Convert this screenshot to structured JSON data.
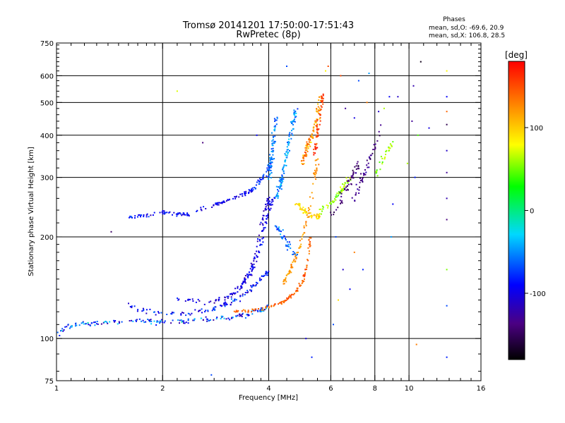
{
  "chart_data": {
    "type": "scatter",
    "title": "Tromsø 20141201 17:50:00-17:51:43",
    "subtitle": "RwPretec (8p)",
    "xlabel": "Frequency [MHz]",
    "ylabel": "Stationary phase Virtual Height [km]",
    "x_scale": "log",
    "y_scale": "log",
    "xlim": [
      1,
      16
    ],
    "ylim": [
      75,
      750
    ],
    "x_ticks": [
      1,
      2,
      4,
      6,
      8,
      10,
      16
    ],
    "y_ticks": [
      75,
      100,
      200,
      300,
      400,
      500,
      600,
      750
    ],
    "x_minor_ticks": [
      1.1,
      1.2,
      1.3,
      1.4,
      1.5,
      1.6,
      1.7,
      1.8,
      1.9,
      2.2,
      2.4,
      2.6,
      2.8,
      3,
      3.2,
      3.4,
      3.6,
      3.8,
      4.5,
      5,
      5.5,
      6.5,
      7,
      7.5,
      8.5,
      9,
      9.5,
      11,
      12,
      13,
      14,
      15
    ],
    "y_minor_ticks": [
      80,
      90,
      110,
      120,
      130,
      140,
      150,
      160,
      170,
      180,
      190,
      220,
      240,
      260,
      280,
      320,
      340,
      360,
      380,
      420,
      440,
      460,
      480,
      520,
      540,
      560,
      580,
      620,
      640,
      660,
      680,
      700,
      720,
      740
    ],
    "grid_x": [
      2,
      4,
      6,
      8,
      10
    ],
    "grid_y": [
      100,
      200,
      300,
      400,
      500,
      600
    ],
    "grid": true,
    "stats": {
      "title": "Phases",
      "line1": "mean, sd,O: -69.6, 20.9",
      "line2": "mean, sd,X: 106.8, 28.5"
    },
    "colorbar": {
      "label": "[deg]",
      "range": [
        -180,
        180
      ],
      "ticks": [
        100,
        0,
        -100
      ],
      "colormap": [
        "#000000",
        "#4b0082",
        "#0000ff",
        "#00d8ff",
        "#00ff00",
        "#ffff00",
        "#ff8000",
        "#ff0000"
      ]
    },
    "traces": [
      {
        "x": [
          1.0,
          1.07,
          1.15,
          1.3,
          1.5,
          1.7,
          1.9,
          2.1,
          2.4,
          2.8,
          3.2,
          3.5,
          3.8,
          4.0
        ],
        "y": [
          105,
          108,
          110,
          111,
          112,
          113,
          112,
          112,
          113,
          114,
          116,
          118,
          121,
          125
        ],
        "spread": 0.02,
        "c0": -120,
        "c1": -20,
        "n": 180
      },
      {
        "x": [
          1.6,
          1.8,
          2.0,
          2.3,
          2.6,
          2.9,
          3.2,
          3.5,
          3.8,
          4.0
        ],
        "y": [
          125,
          121,
          118,
          118,
          120,
          124,
          130,
          138,
          150,
          160
        ],
        "spread": 0.025,
        "c0": -110,
        "c1": -50,
        "n": 120
      },
      {
        "x": [
          2.2,
          2.6,
          3.0,
          3.3,
          3.5,
          3.7,
          3.8,
          3.9,
          4.0
        ],
        "y": [
          132,
          128,
          131,
          140,
          155,
          180,
          210,
          240,
          260
        ],
        "spread": 0.02,
        "c0": -115,
        "c1": -75,
        "n": 110
      },
      {
        "x": [
          3.1,
          3.4,
          3.6,
          3.75,
          3.85,
          3.95,
          4.05,
          4.15
        ],
        "y": [
          138,
          145,
          158,
          180,
          200,
          230,
          250,
          260
        ],
        "spread": 0.02,
        "c0": -100,
        "c1": -70,
        "n": 70
      },
      {
        "x": [
          1.6,
          1.8,
          2.0,
          2.2,
          2.4
        ],
        "y": [
          228,
          232,
          236,
          234,
          232
        ],
        "spread": 0.015,
        "c0": -100,
        "c1": -60,
        "n": 60
      },
      {
        "x": [
          2.5,
          2.8,
          3.0,
          3.2,
          3.4,
          3.6
        ],
        "y": [
          240,
          248,
          255,
          262,
          268,
          276
        ],
        "spread": 0.015,
        "c0": -105,
        "c1": -70,
        "n": 60
      },
      {
        "x": [
          3.5,
          3.7,
          3.85,
          4.0,
          4.1
        ],
        "y": [
          270,
          285,
          300,
          320,
          345
        ],
        "spread": 0.02,
        "c0": -80,
        "c1": -60,
        "n": 40
      },
      {
        "x": [
          4.2,
          4.3,
          4.4,
          4.5,
          4.6,
          4.7,
          4.8
        ],
        "y": [
          260,
          280,
          310,
          350,
          400,
          440,
          480
        ],
        "spread": 0.03,
        "c0": -60,
        "c1": -30,
        "n": 120
      },
      {
        "x": [
          4.0,
          4.05,
          4.1,
          4.15,
          4.2
        ],
        "y": [
          300,
          330,
          360,
          400,
          450
        ],
        "spread": 0.03,
        "c0": -60,
        "c1": -40,
        "n": 70
      },
      {
        "x": [
          4.2,
          4.4,
          4.6,
          4.8
        ],
        "y": [
          220,
          200,
          185,
          175
        ],
        "spread": 0.03,
        "c0": -70,
        "c1": -40,
        "n": 40
      },
      {
        "x": [
          3.2,
          3.5,
          3.8,
          4.1,
          4.4,
          4.6,
          4.8,
          5.0,
          5.1,
          5.2,
          5.25
        ],
        "y": [
          120,
          121,
          122,
          125,
          128,
          133,
          138,
          148,
          160,
          180,
          200
        ],
        "spread": 0.015,
        "c0": 130,
        "c1": 150,
        "n": 110
      },
      {
        "x": [
          4.4,
          4.6,
          4.8,
          5.0,
          5.2,
          5.4,
          5.5
        ],
        "y": [
          145,
          160,
          175,
          200,
          240,
          300,
          340
        ],
        "spread": 0.025,
        "c0": 110,
        "c1": 130,
        "n": 90
      },
      {
        "x": [
          5.0,
          5.1,
          5.3,
          5.5,
          5.6
        ],
        "y": [
          330,
          360,
          400,
          450,
          520
        ],
        "spread": 0.03,
        "c0": 90,
        "c1": 150,
        "n": 90
      },
      {
        "x": [
          5.4,
          5.5,
          5.6,
          5.7
        ],
        "y": [
          350,
          400,
          460,
          530
        ],
        "spread": 0.025,
        "c0": 140,
        "c1": 170,
        "n": 60
      },
      {
        "x": [
          4.8,
          5.0,
          5.2,
          5.4,
          5.6
        ],
        "y": [
          250,
          240,
          232,
          230,
          230
        ],
        "spread": 0.02,
        "c0": 70,
        "c1": 110,
        "n": 50
      },
      {
        "x": [
          5.6,
          6.0,
          6.3,
          6.5,
          6.8
        ],
        "y": [
          240,
          250,
          265,
          280,
          300
        ],
        "spread": 0.025,
        "c0": 40,
        "c1": 70,
        "n": 60
      },
      {
        "x": [
          6.0,
          6.3,
          6.6,
          6.9,
          7.2
        ],
        "y": [
          230,
          250,
          275,
          300,
          330
        ],
        "spread": 0.03,
        "c0": -150,
        "c1": -120,
        "n": 50
      },
      {
        "x": [
          6.8,
          7.2,
          7.6,
          8.0,
          8.3
        ],
        "y": [
          250,
          280,
          320,
          370,
          420
        ],
        "spread": 0.03,
        "c0": -140,
        "c1": -110,
        "n": 50
      },
      {
        "x": [
          8.0,
          8.3,
          8.7,
          9.0
        ],
        "y": [
          300,
          330,
          360,
          380
        ],
        "spread": 0.03,
        "c0": 40,
        "c1": 70,
        "n": 30
      }
    ],
    "scatter_points": [
      {
        "x": 6.4,
        "y": 600,
        "c": 150
      },
      {
        "x": 7.2,
        "y": 580,
        "c": -60
      },
      {
        "x": 7.7,
        "y": 610,
        "c": -40
      },
      {
        "x": 8.8,
        "y": 520,
        "c": -80
      },
      {
        "x": 10.3,
        "y": 560,
        "c": -110
      },
      {
        "x": 10.8,
        "y": 660,
        "c": -170
      },
      {
        "x": 12.8,
        "y": 620,
        "c": 80
      },
      {
        "x": 12.8,
        "y": 520,
        "c": -80
      },
      {
        "x": 12.8,
        "y": 470,
        "c": 140
      },
      {
        "x": 12.8,
        "y": 430,
        "c": -150
      },
      {
        "x": 12.8,
        "y": 360,
        "c": -100
      },
      {
        "x": 12.8,
        "y": 310,
        "c": -120
      },
      {
        "x": 12.8,
        "y": 260,
        "c": -110
      },
      {
        "x": 12.8,
        "y": 225,
        "c": -130
      },
      {
        "x": 12.8,
        "y": 160,
        "c": 50
      },
      {
        "x": 12.8,
        "y": 125,
        "c": -60
      },
      {
        "x": 12.8,
        "y": 88,
        "c": -70
      },
      {
        "x": 10.5,
        "y": 96,
        "c": 130
      },
      {
        "x": 10.2,
        "y": 440,
        "c": -120
      },
      {
        "x": 10.6,
        "y": 400,
        "c": 40
      },
      {
        "x": 9.9,
        "y": 330,
        "c": 60
      },
      {
        "x": 11.4,
        "y": 420,
        "c": -90
      },
      {
        "x": 10.4,
        "y": 300,
        "c": -70
      },
      {
        "x": 2.2,
        "y": 540,
        "c": 70
      },
      {
        "x": 2.75,
        "y": 78,
        "c": -60
      },
      {
        "x": 3.7,
        "y": 400,
        "c": -80
      },
      {
        "x": 2.6,
        "y": 380,
        "c": -130
      },
      {
        "x": 1.43,
        "y": 207,
        "c": -140
      },
      {
        "x": 5.3,
        "y": 88,
        "c": -70
      },
      {
        "x": 5.1,
        "y": 100,
        "c": -90
      },
      {
        "x": 6.1,
        "y": 110,
        "c": -60
      },
      {
        "x": 6.8,
        "y": 140,
        "c": -80
      },
      {
        "x": 7.4,
        "y": 160,
        "c": -70
      },
      {
        "x": 6.5,
        "y": 160,
        "c": -100
      },
      {
        "x": 8.9,
        "y": 200,
        "c": -40
      },
      {
        "x": 9.0,
        "y": 250,
        "c": -80
      },
      {
        "x": 8.5,
        "y": 480,
        "c": 60
      },
      {
        "x": 9.3,
        "y": 520,
        "c": -100
      },
      {
        "x": 6.6,
        "y": 480,
        "c": -120
      },
      {
        "x": 7.0,
        "y": 450,
        "c": -90
      },
      {
        "x": 7.6,
        "y": 500,
        "c": 130
      },
      {
        "x": 8.2,
        "y": 470,
        "c": -100
      },
      {
        "x": 5.9,
        "y": 640,
        "c": 150
      },
      {
        "x": 5.8,
        "y": 620,
        "c": 80
      },
      {
        "x": 4.5,
        "y": 640,
        "c": -60
      },
      {
        "x": 6.2,
        "y": 200,
        "c": -60
      },
      {
        "x": 7.0,
        "y": 180,
        "c": 130
      },
      {
        "x": 6.3,
        "y": 130,
        "c": 90
      },
      {
        "x": 1.08,
        "y": 110,
        "c": -60
      },
      {
        "x": 1.02,
        "y": 102,
        "c": -70
      }
    ]
  }
}
